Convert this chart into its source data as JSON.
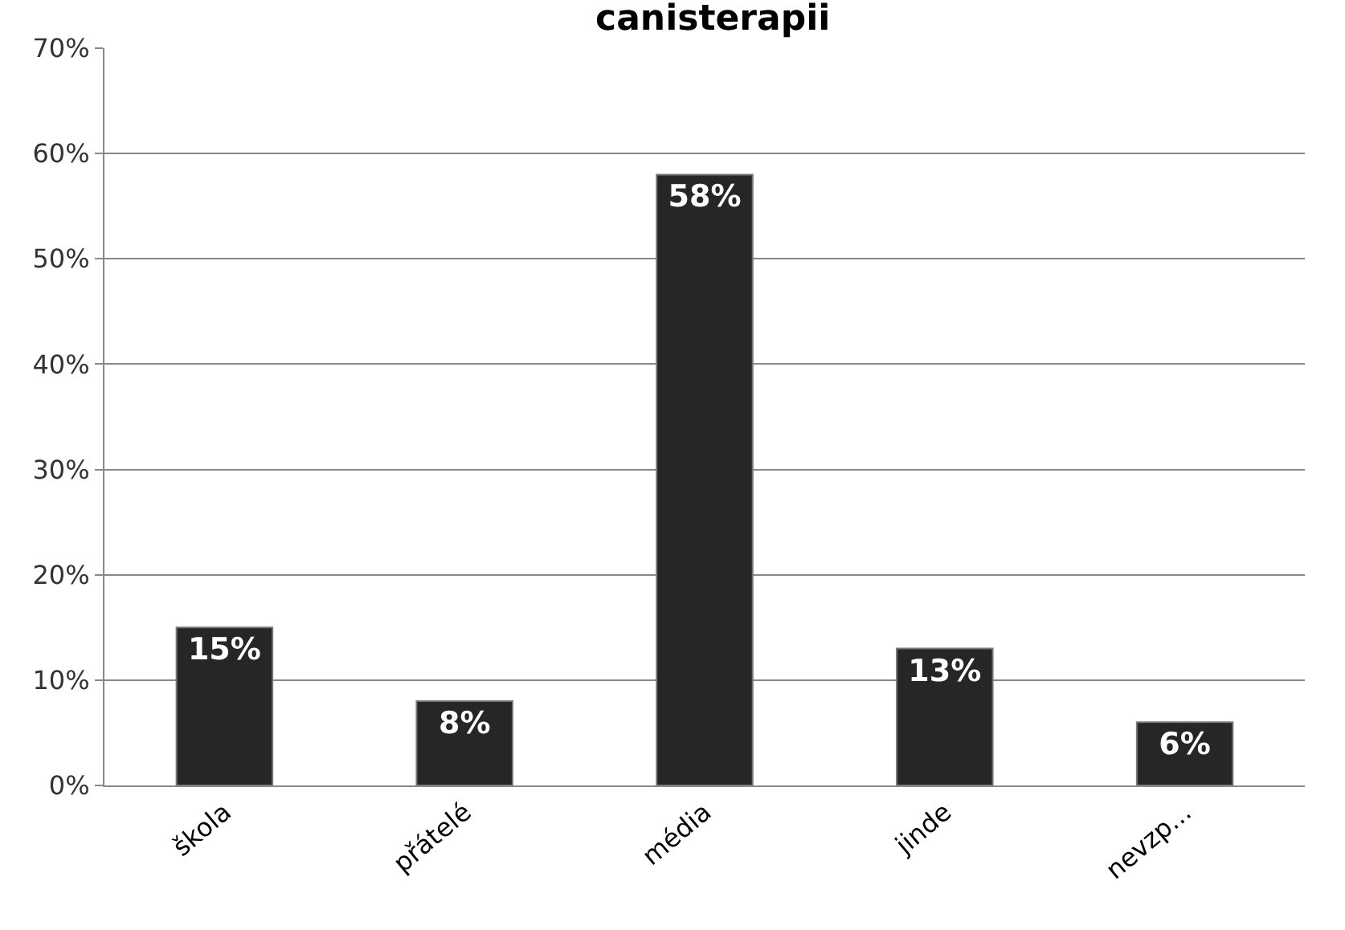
{
  "chart_data": {
    "type": "bar",
    "title": "canisterapii",
    "categories": [
      "škola",
      "přátelé",
      "média",
      "jinde",
      "nevzp..."
    ],
    "values": [
      15,
      8,
      58,
      13,
      6
    ],
    "color": "#262626",
    "value_labels": [
      "15%",
      "8%",
      "58%",
      "13%",
      "6%"
    ],
    "ylim": [
      0,
      70
    ],
    "yticks": [
      {
        "value": 0,
        "label": "0%"
      },
      {
        "value": 10,
        "label": "10%"
      },
      {
        "value": 20,
        "label": "20%"
      },
      {
        "value": 30,
        "label": "30%"
      },
      {
        "value": 40,
        "label": "40%"
      },
      {
        "value": 50,
        "label": "50%"
      },
      {
        "value": 60,
        "label": "60%"
      },
      {
        "value": 70,
        "label": "70%"
      }
    ],
    "grid": "y"
  }
}
